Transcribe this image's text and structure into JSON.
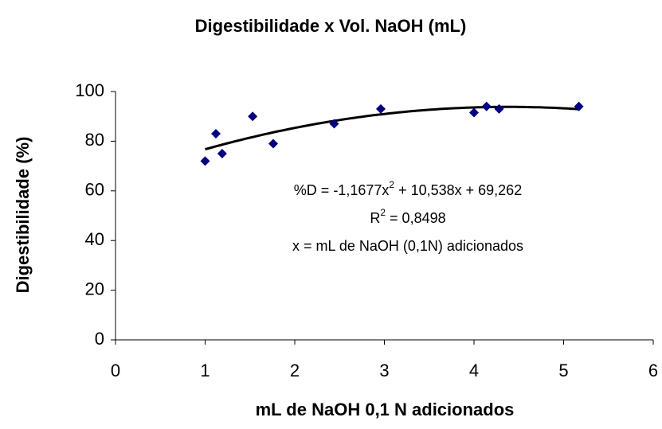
{
  "chart_data": {
    "type": "scatter",
    "title": "Digestibilidade x Vol. NaOH (mL)",
    "x_label": "mL de NaOH 0,1 N adicionados",
    "y_label": "Digestibilidade (%)",
    "x": [
      1.0,
      1.12,
      1.19,
      1.53,
      1.76,
      2.44,
      2.96,
      4.0,
      4.14,
      4.28,
      5.17
    ],
    "values": [
      72,
      83,
      75,
      90,
      79,
      87,
      93,
      91.5,
      94,
      93,
      94
    ],
    "color": "#000080",
    "xlim": [
      0,
      6
    ],
    "xticks": [
      0,
      1,
      2,
      3,
      4,
      5,
      6
    ],
    "ylim": [
      0,
      100
    ],
    "yticks": [
      0,
      20,
      40,
      60,
      80,
      100
    ],
    "grid": false,
    "trendline": {
      "type": "polynomial",
      "order": 2
    },
    "annotation": [
      [
        "%D = -1,1677x",
        "2",
        " + 10,538x + 69,262"
      ],
      [
        "R",
        "2",
        " = 0,8498"
      ],
      [
        "x = mL de NaOH (0,1N) adicionados"
      ]
    ]
  }
}
